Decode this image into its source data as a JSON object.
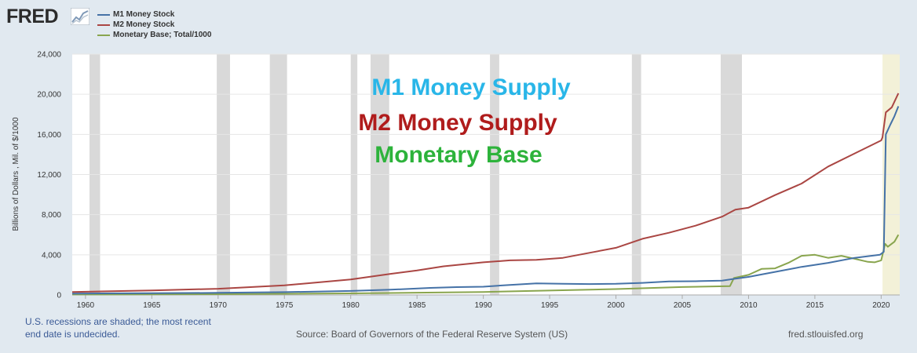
{
  "logo": {
    "text": "FRED"
  },
  "colors": {
    "m1": "#4572a7",
    "m2": "#aa4643",
    "base": "#89a54e",
    "recession": "#d9d9d9",
    "undecided": "#f3f1d8",
    "m1_annot": "#29b6e8",
    "m2_annot": "#b01c1c",
    "base_annot": "#2db33b"
  },
  "chart_data": {
    "type": "line",
    "ylabel": "Billions of Dollars , Mil. of $/1000",
    "xlim": [
      1959,
      2021.4
    ],
    "ylim": [
      0,
      24000
    ],
    "yticks": [
      "0",
      "4,000",
      "8,000",
      "12,000",
      "16,000",
      "20,000",
      "24,000"
    ],
    "xticks": [
      "1960",
      "1965",
      "1970",
      "1975",
      "1980",
      "1985",
      "1990",
      "1995",
      "2000",
      "2005",
      "2010",
      "2015",
      "2020"
    ],
    "recessions": [
      [
        1960.3,
        1961.1
      ],
      [
        1969.9,
        1970.9
      ],
      [
        1973.9,
        1975.2
      ],
      [
        1980.0,
        1980.5
      ],
      [
        1981.5,
        1982.9
      ],
      [
        1990.5,
        1991.2
      ],
      [
        2001.2,
        2001.9
      ],
      [
        2007.9,
        2009.5
      ]
    ],
    "undecided_recession": [
      2020.1,
      2021.4
    ],
    "series": [
      {
        "name": "M1 Money Stock",
        "key": "m1",
        "x": [
          1959,
          1965,
          1970,
          1975,
          1980,
          1983,
          1986,
          1988,
          1990,
          1992,
          1994,
          1996,
          1998,
          2000,
          2002,
          2004,
          2006,
          2008,
          2008.9,
          2010,
          2012,
          2014,
          2016,
          2018,
          2019.9,
          2020.2,
          2020.35,
          2020.7,
          2021,
          2021.3
        ],
        "y": [
          140,
          170,
          210,
          280,
          400,
          520,
          700,
          780,
          820,
          1000,
          1150,
          1120,
          1090,
          1110,
          1200,
          1350,
          1370,
          1420,
          1600,
          1800,
          2300,
          2800,
          3200,
          3700,
          4000,
          4300,
          16000,
          17000,
          17800,
          18800
        ]
      },
      {
        "name": "M2 Money Stock",
        "key": "m2",
        "x": [
          1959,
          1965,
          1970,
          1975,
          1980,
          1983,
          1985,
          1987,
          1990,
          1992,
          1994,
          1996,
          1998,
          2000,
          2002,
          2004,
          2006,
          2008,
          2009,
          2010,
          2012,
          2014,
          2016,
          2018,
          2020,
          2020.1,
          2020.35,
          2020.8,
          2021.3
        ],
        "y": [
          300,
          450,
          620,
          950,
          1550,
          2100,
          2450,
          2850,
          3250,
          3450,
          3500,
          3700,
          4200,
          4700,
          5600,
          6200,
          6900,
          7800,
          8500,
          8700,
          9950,
          11100,
          12800,
          14100,
          15400,
          15700,
          18200,
          18700,
          20100
        ]
      },
      {
        "name": "Monetary Base; Total/1000",
        "key": "base",
        "x": [
          1959,
          1970,
          1980,
          1990,
          2000,
          2005,
          2008.6,
          2008.9,
          2010,
          2011,
          2012,
          2013,
          2014,
          2015,
          2016,
          2017,
          2018,
          2019,
          2019.5,
          2020,
          2020.3,
          2020.5,
          2021,
          2021.3
        ],
        "y": [
          50,
          80,
          160,
          300,
          590,
          790,
          880,
          1700,
          2000,
          2600,
          2650,
          3200,
          3900,
          4000,
          3700,
          3900,
          3600,
          3300,
          3250,
          3450,
          5100,
          4800,
          5300,
          6000
        ]
      }
    ]
  },
  "annotations": {
    "m1": "M1 Money Supply",
    "m2": "M2 Money Supply",
    "base": "Monetary Base"
  },
  "footer": {
    "note_line1": "U.S. recessions are shaded; the most recent",
    "note_line2": "end date is undecided.",
    "source": "Source: Board of Governors of the Federal Reserve System (US)",
    "site": "fred.stlouisfed.org"
  }
}
